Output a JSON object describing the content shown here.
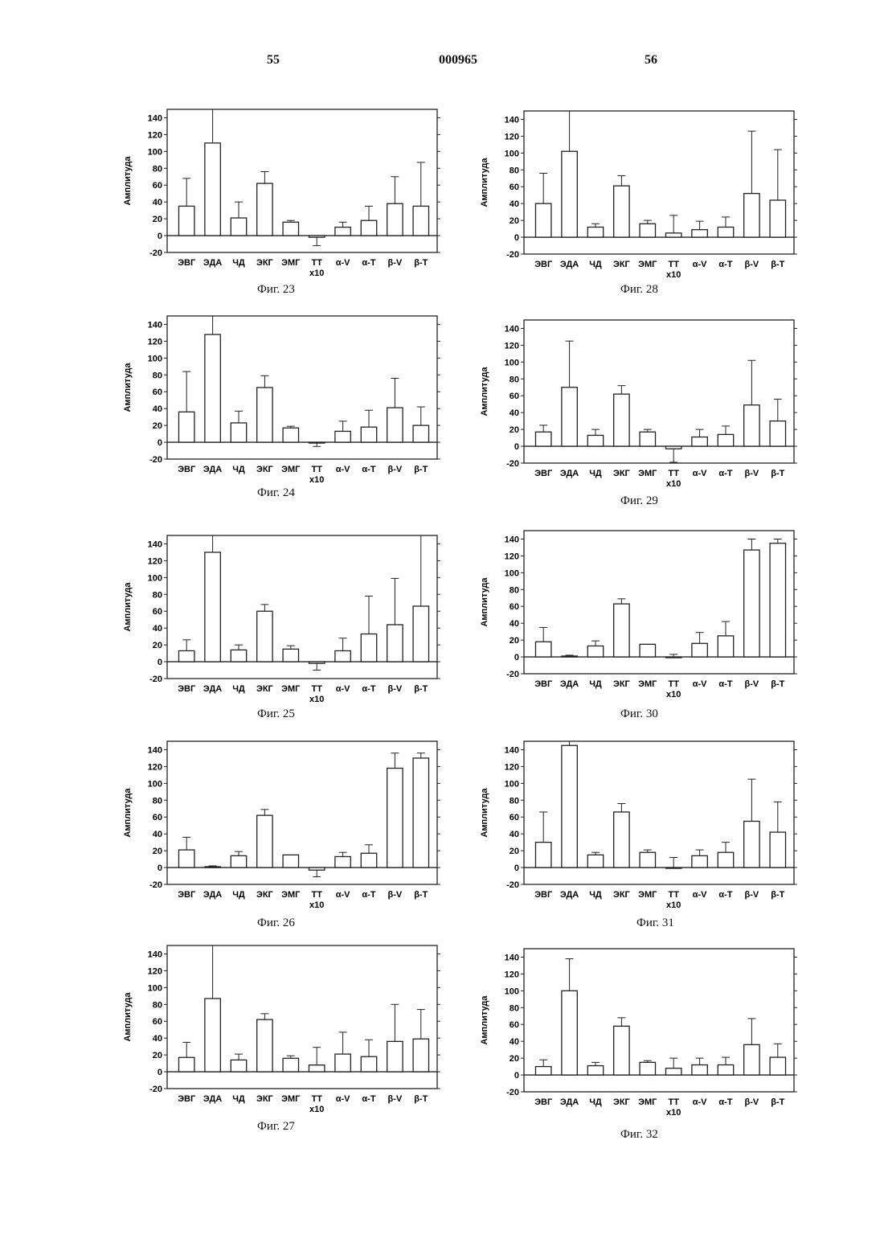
{
  "header": {
    "left_page": "55",
    "document_number": "000965",
    "right_page": "56"
  },
  "charts_common": {
    "ylabel": "Амплитуда",
    "y_ticks": [
      "-20",
      "0",
      "20",
      "40",
      "60",
      "80",
      "100",
      "120",
      "140"
    ],
    "categories": [
      "ЭВГ",
      "ЭДА",
      "ЧД",
      "ЭКГ",
      "ЭМГ",
      "ТТ",
      "α-V",
      "α-T",
      "β-V",
      "β-T"
    ],
    "tt_sublabel": "x10",
    "ylim": [
      -20,
      150
    ]
  },
  "chart_data": [
    {
      "caption": "Фиг. 23",
      "type": "bar",
      "values": [
        35,
        110,
        21,
        62,
        16,
        -2,
        10,
        18,
        38,
        35
      ],
      "errors": [
        33,
        40,
        19,
        14,
        2,
        10,
        6,
        17,
        32,
        52
      ]
    },
    {
      "caption": "Фиг. 24",
      "type": "bar",
      "values": [
        36,
        128,
        23,
        65,
        17,
        -1,
        13,
        18,
        41,
        20
      ],
      "errors": [
        48,
        22,
        14,
        14,
        2,
        4,
        12,
        20,
        35,
        22
      ]
    },
    {
      "caption": "Фиг. 25",
      "type": "bar",
      "values": [
        13,
        130,
        14,
        60,
        15,
        -2,
        13,
        33,
        44,
        66
      ],
      "errors": [
        13,
        20,
        6,
        8,
        4,
        8,
        15,
        45,
        55,
        84
      ]
    },
    {
      "caption": "Фиг. 26",
      "type": "bar",
      "values": [
        21,
        1,
        14,
        62,
        15,
        -3,
        13,
        17,
        118,
        130
      ],
      "errors": [
        15,
        1,
        5,
        7,
        0,
        8,
        5,
        10,
        18,
        6
      ]
    },
    {
      "caption": "Фиг. 27",
      "type": "bar",
      "values": [
        17,
        87,
        14,
        62,
        16,
        8,
        21,
        18,
        36,
        39
      ],
      "errors": [
        18,
        63,
        7,
        7,
        3,
        21,
        26,
        20,
        44,
        35
      ]
    },
    {
      "caption": "Фиг. 28",
      "type": "bar",
      "values": [
        40,
        102,
        12,
        61,
        16,
        5,
        9,
        12,
        52,
        44
      ],
      "errors": [
        36,
        48,
        4,
        12,
        4,
        21,
        10,
        12,
        74,
        60
      ]
    },
    {
      "caption": "Фиг. 29",
      "type": "bar",
      "values": [
        17,
        70,
        13,
        62,
        17,
        -3,
        11,
        14,
        49,
        30
      ],
      "errors": [
        8,
        55,
        7,
        10,
        3,
        16,
        9,
        10,
        53,
        26
      ]
    },
    {
      "caption": "Фиг. 30",
      "type": "bar",
      "values": [
        18,
        1,
        13,
        63,
        15,
        0,
        16,
        25,
        127,
        135
      ],
      "errors": [
        17,
        1,
        6,
        6,
        0,
        3,
        13,
        17,
        13,
        5
      ]
    },
    {
      "caption": "Фиг. 31",
      "type": "bar",
      "values": [
        30,
        145,
        15,
        66,
        18,
        0,
        14,
        18,
        55,
        42
      ],
      "errors": [
        36,
        5,
        3,
        10,
        3,
        12,
        7,
        12,
        50,
        36
      ]
    },
    {
      "caption": "Фиг. 32",
      "type": "bar",
      "values": [
        10,
        100,
        11,
        58,
        15,
        8,
        12,
        12,
        36,
        21
      ],
      "errors": [
        8,
        38,
        4,
        10,
        2,
        12,
        8,
        9,
        31,
        16
      ]
    }
  ]
}
